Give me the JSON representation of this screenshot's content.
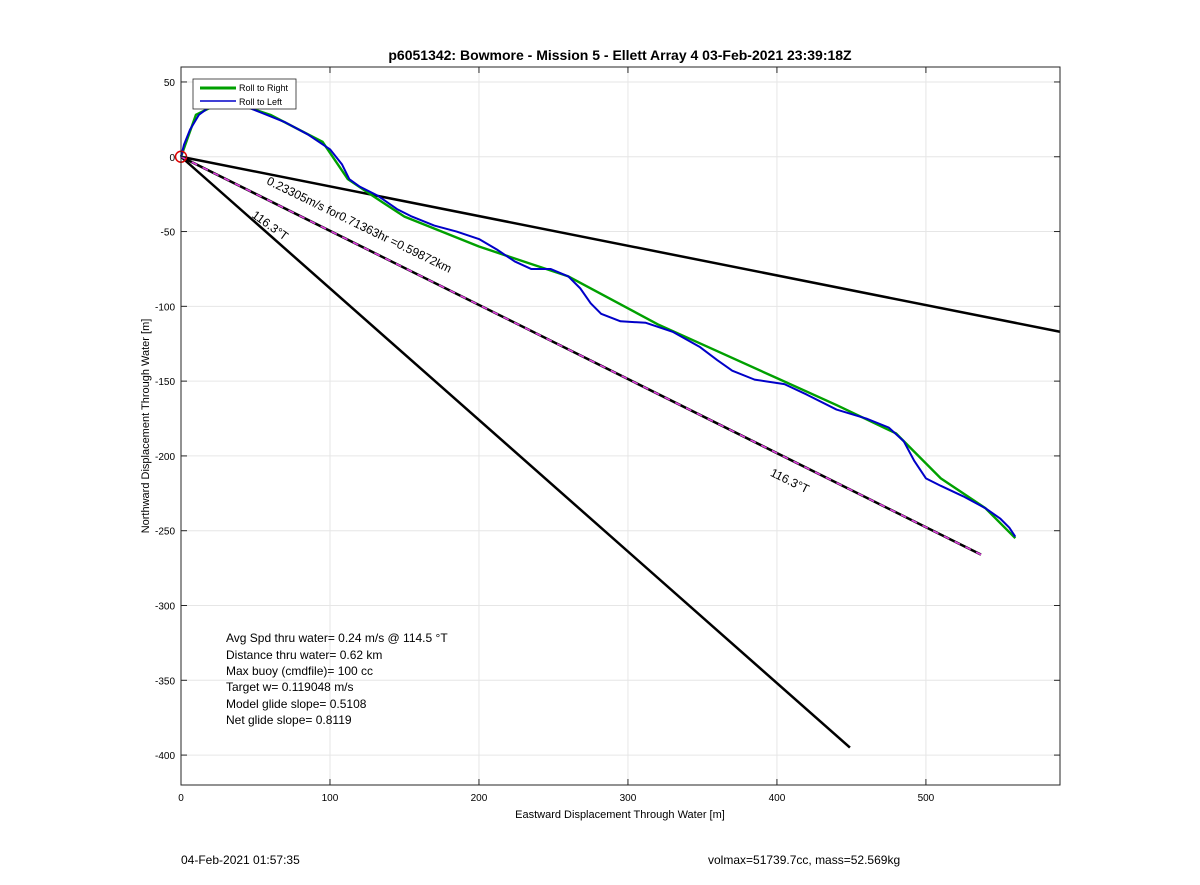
{
  "chart_data": {
    "type": "line",
    "title": "p6051342: Bowmore - Mission 5 - Ellett Array 4 03-Feb-2021 23:39:18Z",
    "xlabel": "Eastward Displacement Through Water [m]",
    "ylabel": "Northward Displacement Through Water [m]",
    "xlim": [
      0,
      590
    ],
    "ylim": [
      -420,
      60
    ],
    "xticks": [
      0,
      100,
      200,
      300,
      400,
      500
    ],
    "yticks": [
      50,
      0,
      -50,
      -100,
      -150,
      -200,
      -250,
      -300,
      -350,
      -400
    ],
    "grid": true,
    "legend_placement": "top-left",
    "legend": [
      {
        "label": "Roll to Right",
        "color": "#00a000"
      },
      {
        "label": "Roll to Left",
        "color": "#0000c8"
      }
    ],
    "series": [
      {
        "name": "Roll to Right",
        "color": "#00a000",
        "points": [
          [
            0,
            0
          ],
          [
            10,
            28
          ],
          [
            30,
            38
          ],
          [
            60,
            28
          ],
          [
            95,
            10
          ],
          [
            112,
            -15
          ],
          [
            130,
            -27
          ],
          [
            150,
            -40
          ],
          [
            200,
            -60
          ],
          [
            260,
            -80
          ],
          [
            320,
            -112
          ],
          [
            360,
            -130
          ],
          [
            400,
            -148
          ],
          [
            440,
            -166
          ],
          [
            480,
            -185
          ],
          [
            510,
            -215
          ],
          [
            540,
            -235
          ],
          [
            560,
            -255
          ]
        ]
      },
      {
        "name": "Roll to Left",
        "color": "#0000c8",
        "points": [
          [
            0,
            0
          ],
          [
            2,
            8
          ],
          [
            6,
            18
          ],
          [
            12,
            28
          ],
          [
            20,
            34
          ],
          [
            30,
            37
          ],
          [
            40,
            35
          ],
          [
            55,
            29
          ],
          [
            70,
            23
          ],
          [
            85,
            15
          ],
          [
            100,
            5
          ],
          [
            108,
            -5
          ],
          [
            113,
            -15
          ],
          [
            120,
            -20
          ],
          [
            132,
            -26
          ],
          [
            145,
            -35
          ],
          [
            155,
            -40
          ],
          [
            170,
            -46
          ],
          [
            185,
            -50
          ],
          [
            200,
            -55
          ],
          [
            212,
            -62
          ],
          [
            224,
            -70
          ],
          [
            235,
            -75
          ],
          [
            248,
            -75
          ],
          [
            260,
            -80
          ],
          [
            268,
            -88
          ],
          [
            275,
            -98
          ],
          [
            282,
            -105
          ],
          [
            295,
            -110
          ],
          [
            312,
            -111
          ],
          [
            330,
            -117
          ],
          [
            348,
            -127
          ],
          [
            360,
            -136
          ],
          [
            370,
            -143
          ],
          [
            385,
            -149
          ],
          [
            405,
            -152
          ],
          [
            420,
            -159
          ],
          [
            440,
            -169
          ],
          [
            460,
            -175
          ],
          [
            475,
            -181
          ],
          [
            485,
            -190
          ],
          [
            492,
            -203
          ],
          [
            500,
            -215
          ],
          [
            510,
            -220
          ],
          [
            525,
            -227
          ],
          [
            540,
            -235
          ],
          [
            550,
            -242
          ],
          [
            556,
            -248
          ],
          [
            560,
            -254
          ]
        ]
      },
      {
        "name": "",
        "color": "#000000",
        "points": [
          [
            0,
            0
          ],
          [
            590,
            -117
          ]
        ]
      },
      {
        "name": "",
        "color": "#000000",
        "points": [
          [
            0,
            0
          ],
          [
            449,
            -395
          ]
        ]
      },
      {
        "name": "",
        "color": "#000000",
        "dash_color": "#e040e0",
        "points": [
          [
            0,
            0
          ],
          [
            537,
            -266
          ]
        ]
      }
    ],
    "markers": [
      {
        "type": "circle",
        "color": "#e00000",
        "x": 0,
        "y": 0
      }
    ],
    "annotations": [
      {
        "text": "0.23305m/s for0.71363hr =0.59872km",
        "x": 57,
        "y": -18,
        "angle_deg": 26
      },
      {
        "text": "116.3°T",
        "x": 47,
        "y": -40,
        "angle_deg": 36
      },
      {
        "text": "116.3°T",
        "x": 395,
        "y": -213,
        "angle_deg": 26
      }
    ],
    "stats": [
      "Avg Spd thru water=  0.24 m/s @ 114.5 °T",
      "Distance thru water=  0.62 km",
      "Max buoy (cmdfile)= 100 cc",
      "Target w= 0.119048 m/s",
      "Model glide slope= 0.5108",
      "Net glide slope= 0.8119"
    ]
  },
  "footer": {
    "left": "04-Feb-2021 01:57:35",
    "right": "volmax=51739.7cc, mass=52.569kg"
  }
}
